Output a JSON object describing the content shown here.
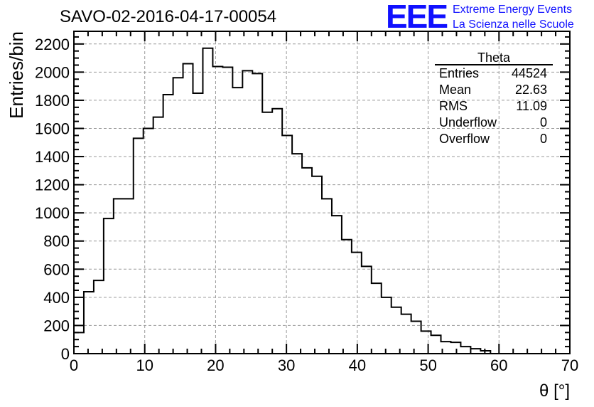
{
  "chart_data": {
    "type": "bar",
    "title": "SAVO-02-2016-04-17-00054",
    "xlabel": "θ [°]",
    "ylabel": "Entries/bin",
    "xlim": [
      0,
      70
    ],
    "ylim": [
      0,
      2290
    ],
    "bin_width": 1.4,
    "grid": true,
    "x_ticks": [
      "0",
      "10",
      "20",
      "30",
      "40",
      "50",
      "60",
      "70"
    ],
    "y_ticks": [
      "0",
      "200",
      "400",
      "600",
      "800",
      "1000",
      "1200",
      "1400",
      "1600",
      "1800",
      "2000",
      "2200"
    ],
    "values": [
      150,
      440,
      520,
      960,
      1100,
      1100,
      1530,
      1600,
      1680,
      1840,
      1960,
      2060,
      1850,
      2170,
      2040,
      2035,
      1890,
      2010,
      1990,
      1715,
      1740,
      1550,
      1420,
      1320,
      1260,
      1100,
      980,
      810,
      720,
      620,
      500,
      400,
      330,
      280,
      230,
      160,
      130,
      85,
      80,
      50,
      35,
      20,
      0,
      0,
      0,
      0,
      0,
      0,
      0,
      0
    ],
    "stats": {
      "name": "Theta",
      "rows": [
        {
          "label": "Entries",
          "value": "44524"
        },
        {
          "label": "Mean",
          "value": "22.63"
        },
        {
          "label": "RMS",
          "value": "11.09"
        },
        {
          "label": "Underflow",
          "value": "0"
        },
        {
          "label": "Overflow",
          "value": "0"
        }
      ]
    }
  },
  "logo": {
    "mark": "EEE",
    "line1": "Extreme Energy Events",
    "line2": "La Scienza nelle Scuole"
  }
}
